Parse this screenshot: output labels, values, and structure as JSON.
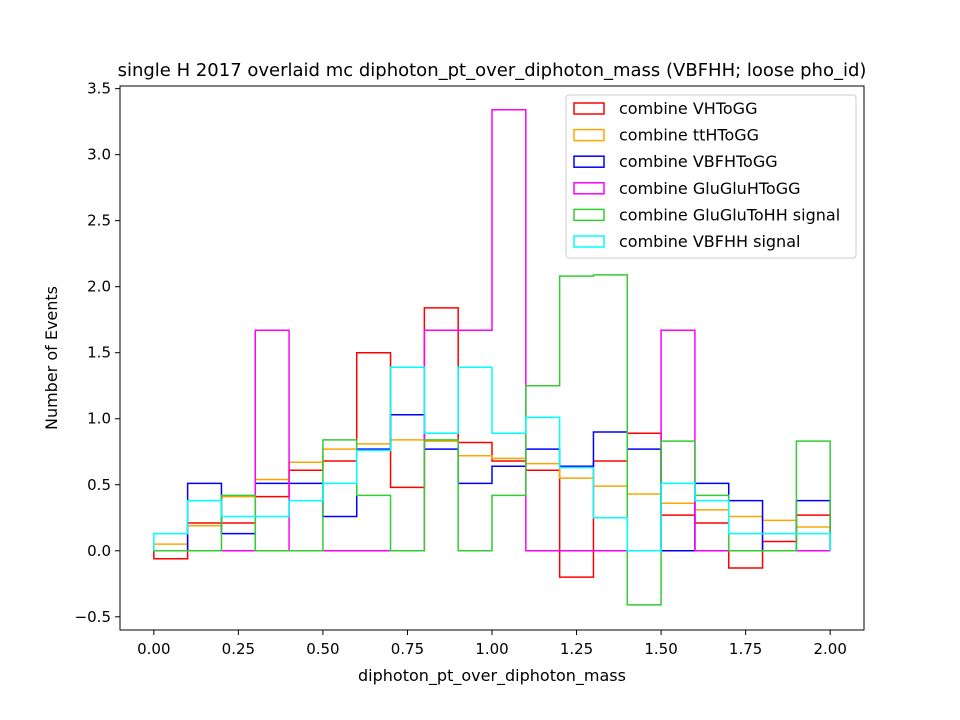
{
  "chart_data": {
    "type": "histogram-step",
    "title": "single H 2017 overlaid mc diphoton_pt_over_diphoton_mass (VBFHH; loose pho_id)",
    "xlabel": "diphoton_pt_over_diphoton_mass",
    "ylabel": "Number of Events",
    "xlim": [
      -0.1,
      2.1
    ],
    "ylim": [
      -0.6,
      3.52
    ],
    "xticks": [
      0.0,
      0.25,
      0.5,
      0.75,
      1.0,
      1.25,
      1.5,
      1.75,
      2.0
    ],
    "xtick_labels": [
      "0.00",
      "0.25",
      "0.50",
      "0.75",
      "1.00",
      "1.25",
      "1.50",
      "1.75",
      "2.00"
    ],
    "yticks": [
      -0.5,
      0.0,
      0.5,
      1.0,
      1.5,
      2.0,
      2.5,
      3.0,
      3.5
    ],
    "ytick_labels": [
      "−0.5",
      "0.0",
      "0.5",
      "1.0",
      "1.5",
      "2.0",
      "2.5",
      "3.0",
      "3.5"
    ],
    "bin_edges": [
      0.0,
      0.1,
      0.2,
      0.3,
      0.4,
      0.5,
      0.6,
      0.7,
      0.8,
      0.9,
      1.0,
      1.1,
      1.2,
      1.3,
      1.4,
      1.5,
      1.6,
      1.7,
      1.8,
      1.9,
      2.0
    ],
    "legend_position": "top-right",
    "series": [
      {
        "name": "combine VHToGG",
        "color": "#ff0000",
        "values": [
          -0.06,
          0.21,
          0.21,
          0.41,
          0.61,
          0.68,
          1.5,
          0.48,
          1.84,
          0.82,
          0.68,
          0.61,
          -0.2,
          0.68,
          0.89,
          0.27,
          0.21,
          -0.13,
          0.07,
          0.27
        ]
      },
      {
        "name": "combine ttHToGG",
        "color": "#ffa500",
        "values": [
          0.05,
          0.19,
          0.41,
          0.54,
          0.67,
          0.77,
          0.81,
          0.84,
          0.83,
          0.72,
          0.7,
          0.66,
          0.55,
          0.49,
          0.43,
          0.36,
          0.31,
          0.26,
          0.23,
          0.18
        ]
      },
      {
        "name": "combine VBFHToGG",
        "color": "#0000ff",
        "values": [
          0.0,
          0.51,
          0.13,
          0.51,
          0.51,
          0.26,
          0.77,
          1.03,
          0.77,
          0.51,
          0.64,
          0.77,
          0.64,
          0.9,
          0.77,
          0.0,
          0.51,
          0.38,
          0.0,
          0.38
        ]
      },
      {
        "name": "combine GluGluHToGG",
        "color": "#ff00ff",
        "values": [
          0.0,
          0.0,
          0.0,
          1.67,
          0.0,
          0.0,
          0.0,
          0.0,
          1.67,
          1.67,
          3.34,
          0.0,
          0.0,
          0.0,
          0.0,
          1.67,
          0.0,
          0.0,
          0.0,
          0.0
        ]
      },
      {
        "name": "combine GluGluToHH signal",
        "color": "#33cc33",
        "values": [
          0.0,
          0.0,
          0.42,
          0.0,
          0.0,
          0.84,
          0.42,
          0.0,
          0.84,
          0.0,
          0.42,
          1.25,
          2.08,
          2.09,
          -0.41,
          0.83,
          0.42,
          0.0,
          0.0,
          0.83
        ]
      },
      {
        "name": "combine VBFHH signal",
        "color": "#00ffff",
        "values": [
          0.13,
          0.38,
          0.26,
          0.26,
          0.38,
          0.51,
          0.76,
          1.39,
          0.89,
          1.39,
          0.89,
          1.01,
          0.63,
          0.25,
          0.0,
          0.51,
          0.38,
          0.13,
          0.13,
          0.13
        ]
      }
    ]
  }
}
